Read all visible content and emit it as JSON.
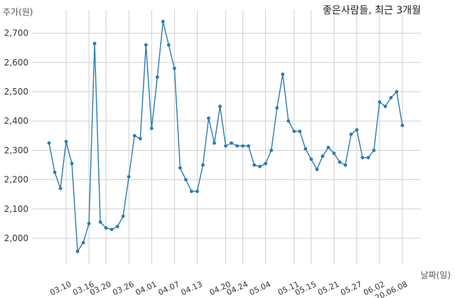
{
  "chart_data": {
    "type": "line",
    "title": "좋은사람들, 최근 3개월",
    "ylabel": "주가(원)",
    "xlabel": "날짜(일)",
    "ylim": [
      1910,
      2760
    ],
    "yticks": [
      2000,
      2100,
      2200,
      2300,
      2400,
      2500,
      2600,
      2700
    ],
    "ytick_labels": [
      "2,000",
      "2,100",
      "2,200",
      "2,300",
      "2,400",
      "2,500",
      "2,600",
      "2,700"
    ],
    "xtick_labels": [
      "03.10",
      "03.16",
      "03.20",
      "03.26",
      "04.01",
      "04.07",
      "04.13",
      "04.20",
      "04.24",
      "05.04",
      "05.11",
      "05.15",
      "05.21",
      "05.27",
      "06.02",
      "20.06.08"
    ],
    "xtick_indices": [
      3,
      7,
      10,
      14,
      18,
      22,
      26,
      31,
      34,
      38,
      43,
      46,
      50,
      54,
      58,
      62
    ],
    "grid": true,
    "color": "#2b7bb0",
    "series": [
      {
        "values": [
          2325,
          2225,
          2170,
          2330,
          2255,
          1955,
          1985,
          2050,
          2665,
          2055,
          2035,
          2030,
          2040,
          2075,
          2210,
          2350,
          2340,
          2660,
          2375,
          2550,
          2740,
          2660,
          2580,
          2240,
          2200,
          2160,
          2160,
          2250,
          2410,
          2325,
          2450,
          2315,
          2325,
          2315,
          2315,
          2315,
          2250,
          2245,
          2255,
          2300,
          2445,
          2560,
          2400,
          2365,
          2365,
          2305,
          2270,
          2235,
          2280,
          2310,
          2290,
          2260,
          2250,
          2355,
          2370,
          2275,
          2275,
          2300,
          2465,
          2450,
          2480,
          2500,
          2385
        ]
      }
    ]
  }
}
